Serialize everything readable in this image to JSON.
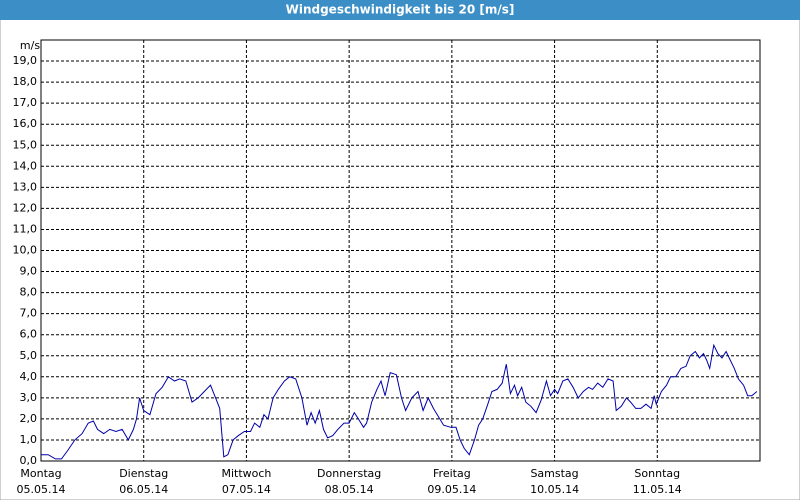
{
  "chart_data": {
    "type": "line",
    "title": "Windgeschwindigkeit bis 20 [m/s]",
    "y_unit": "m/s",
    "xlim": [
      0,
      7
    ],
    "ylim": [
      0,
      20
    ],
    "xticks": [
      {
        "value": 0,
        "label": "Montag"
      },
      {
        "value": 1,
        "label": "Dienstag"
      },
      {
        "value": 2,
        "label": "Mittwoch"
      },
      {
        "value": 3,
        "label": "Donnerstag"
      },
      {
        "value": 4,
        "label": "Freitag"
      },
      {
        "value": 5,
        "label": "Samstag"
      },
      {
        "value": 6,
        "label": "Sonntag"
      }
    ],
    "xtick_dates": [
      "05.05.14",
      "06.05.14",
      "07.05.14",
      "08.05.14",
      "09.05.14",
      "10.05.14",
      "11.05.14"
    ],
    "yticks": [
      {
        "value": 0,
        "label": "0,0"
      },
      {
        "value": 1,
        "label": "1,0"
      },
      {
        "value": 2,
        "label": "2,0"
      },
      {
        "value": 3,
        "label": "3,0"
      },
      {
        "value": 4,
        "label": "4,0"
      },
      {
        "value": 5,
        "label": "5,0"
      },
      {
        "value": 6,
        "label": "6,0"
      },
      {
        "value": 7,
        "label": "7,0"
      },
      {
        "value": 8,
        "label": "8,0"
      },
      {
        "value": 9,
        "label": "9,0"
      },
      {
        "value": 10,
        "label": "10,0"
      },
      {
        "value": 11,
        "label": "11,0"
      },
      {
        "value": 12,
        "label": "12,0"
      },
      {
        "value": 13,
        "label": "13,0"
      },
      {
        "value": 14,
        "label": "14,0"
      },
      {
        "value": 15,
        "label": "15,0"
      },
      {
        "value": 16,
        "label": "16,0"
      },
      {
        "value": 17,
        "label": "17,0"
      },
      {
        "value": 18,
        "label": "18,0"
      },
      {
        "value": 19,
        "label": "19,0"
      }
    ],
    "grid": true,
    "color": "#0000aa",
    "x": [
      0,
      0.07,
      0.14,
      0.2,
      0.26,
      0.33,
      0.4,
      0.46,
      0.51,
      0.55,
      0.61,
      0.67,
      0.73,
      0.79,
      0.85,
      0.9,
      0.93,
      0.96,
      1.0,
      1.06,
      1.12,
      1.18,
      1.24,
      1.3,
      1.35,
      1.41,
      1.47,
      1.53,
      1.59,
      1.65,
      1.7,
      1.74,
      1.78,
      1.82,
      1.87,
      1.92,
      1.98,
      2.04,
      2.08,
      2.13,
      2.17,
      2.21,
      2.26,
      2.31,
      2.37,
      2.42,
      2.48,
      2.54,
      2.59,
      2.63,
      2.67,
      2.71,
      2.75,
      2.79,
      2.84,
      2.89,
      2.95,
      3.0,
      3.05,
      3.09,
      3.14,
      3.17,
      3.22,
      3.27,
      3.31,
      3.35,
      3.4,
      3.46,
      3.51,
      3.55,
      3.61,
      3.67,
      3.72,
      3.77,
      3.82,
      3.87,
      3.92,
      3.99,
      4.04,
      4.08,
      4.12,
      4.17,
      4.22,
      4.26,
      4.3,
      4.35,
      4.39,
      4.44,
      4.49,
      4.53,
      4.57,
      4.61,
      4.64,
      4.68,
      4.72,
      4.77,
      4.82,
      4.87,
      4.92,
      4.96,
      5.0,
      5.03,
      5.08,
      5.13,
      5.18,
      5.23,
      5.28,
      5.33,
      5.37,
      5.42,
      5.47,
      5.52,
      5.57,
      5.6,
      5.65,
      5.7,
      5.74,
      5.79,
      5.84,
      5.89,
      5.94,
      5.97,
      5.99,
      6.04,
      6.09,
      6.13,
      6.18,
      6.23,
      6.28,
      6.32,
      6.37,
      6.41,
      6.45,
      6.48,
      6.51,
      6.55,
      6.59,
      6.63,
      6.67,
      6.71,
      6.75,
      6.79,
      6.84,
      6.88,
      6.92,
      6.97
    ],
    "values": [
      0.3,
      0.3,
      0.1,
      0.1,
      0.5,
      1.0,
      1.3,
      1.8,
      1.9,
      1.5,
      1.3,
      1.5,
      1.4,
      1.5,
      1.0,
      1.5,
      2.0,
      3.0,
      2.4,
      2.2,
      3.2,
      3.5,
      4.0,
      3.8,
      3.9,
      3.8,
      2.8,
      3.0,
      3.3,
      3.6,
      3.0,
      2.5,
      0.2,
      0.3,
      1.0,
      1.2,
      1.4,
      1.4,
      1.8,
      1.6,
      2.2,
      2.0,
      3.0,
      3.4,
      3.8,
      4.0,
      3.9,
      3.0,
      1.7,
      2.3,
      1.8,
      2.4,
      1.5,
      1.1,
      1.2,
      1.5,
      1.8,
      1.8,
      2.3,
      2.0,
      1.6,
      1.8,
      2.8,
      3.4,
      3.8,
      3.1,
      4.2,
      4.1,
      3.0,
      2.4,
      3.0,
      3.3,
      2.4,
      3.0,
      2.5,
      2.1,
      1.7,
      1.6,
      1.6,
      1.0,
      0.6,
      0.3,
      1.0,
      1.7,
      2.0,
      2.7,
      3.3,
      3.4,
      3.7,
      4.6,
      3.2,
      3.6,
      3.1,
      3.5,
      2.8,
      2.6,
      2.3,
      2.9,
      3.8,
      3.1,
      3.4,
      3.2,
      3.8,
      3.9,
      3.5,
      3.0,
      3.3,
      3.5,
      3.4,
      3.7,
      3.5,
      3.9,
      3.8,
      2.4,
      2.6,
      3.0,
      2.8,
      2.5,
      2.5,
      2.7,
      2.5,
      3.1,
      2.7,
      3.3,
      3.6,
      4.0,
      4.0,
      4.4,
      4.5,
      5.0,
      5.2,
      4.9,
      5.1,
      4.8,
      4.4,
      5.5,
      5.1,
      4.9,
      5.2,
      4.8,
      4.4,
      3.9,
      3.6,
      3.1,
      3.1,
      3.3
    ]
  }
}
